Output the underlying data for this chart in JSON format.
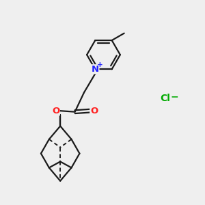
{
  "background_color": "#efefef",
  "bond_color": "#1a1a1a",
  "nitrogen_color": "#2020ff",
  "oxygen_color": "#ff2020",
  "chlorine_color": "#00aa00",
  "line_width": 1.6,
  "figsize": [
    3.0,
    3.0
  ],
  "dpi": 100,
  "xlim": [
    0,
    10
  ],
  "ylim": [
    0,
    10
  ]
}
